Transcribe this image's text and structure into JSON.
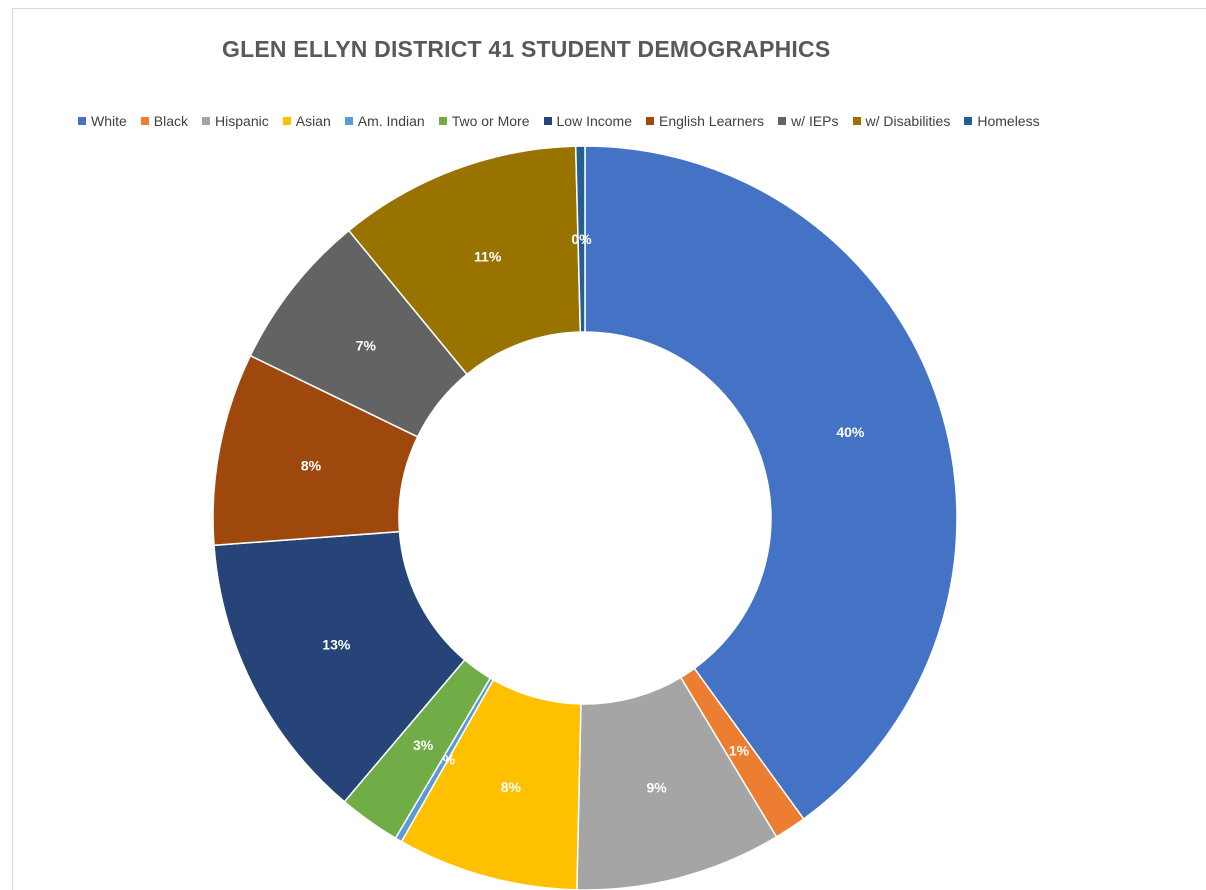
{
  "chart_data": {
    "type": "pie",
    "variant": "doughnut",
    "title": "GLEN ELLYN DISTRICT 41 STUDENT DEMOGRAPHICS",
    "legend_position": "top",
    "categories": [
      "White",
      "Black",
      "Hispanic",
      "Asian",
      "Am. Indian",
      "Two or More",
      "Low Income",
      "English Learners",
      "w/ IEPs",
      "w/ Disabilities",
      "Homeless"
    ],
    "values": [
      40.2,
      1.4,
      9.0,
      7.9,
      0.3,
      2.7,
      12.7,
      8.4,
      6.9,
      10.6,
      0.4
    ],
    "data_labels": [
      "40%",
      "1%",
      "9%",
      "8%",
      "0%",
      "3%",
      "13%",
      "8%",
      "7%",
      "11%",
      "0%"
    ],
    "colors": [
      "#4472c4",
      "#ed7d31",
      "#a5a5a5",
      "#ffc000",
      "#5b9bd5",
      "#70ad47",
      "#264478",
      "#9e480e",
      "#636363",
      "#997300",
      "#255e91"
    ],
    "label_colors": [
      "#ffffff",
      "#ffffff",
      "#ffffff",
      "#ffffff",
      "#ffffff",
      "#ffffff",
      "#ffffff",
      "#ffffff",
      "#ffffff",
      "#ffffff",
      "#ffffff"
    ]
  }
}
